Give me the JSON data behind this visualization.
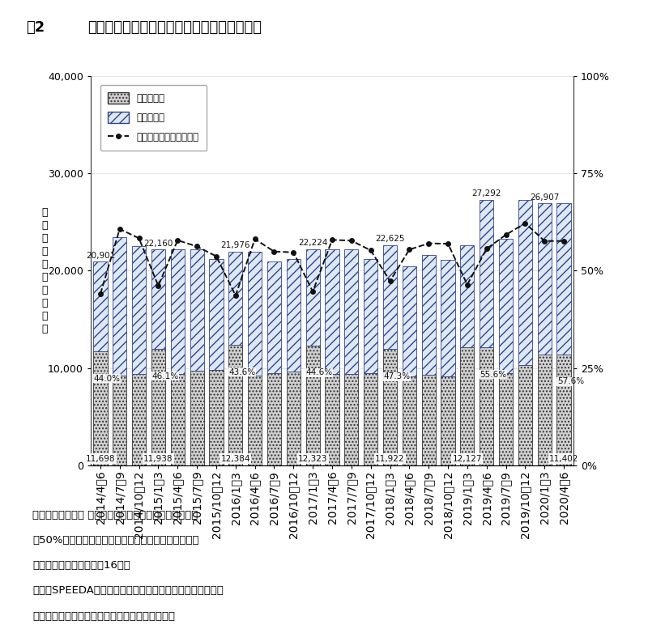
{
  "quarters": [
    "2014/4〧6",
    "2014/7〧9",
    "2014/10〒12",
    "2015/1〧3",
    "2015/4〧6",
    "2015/7〧9",
    "2015/10〒12",
    "2016/1〧3",
    "2016/4〧6",
    "2016/7〧9",
    "2016/10〒12",
    "2017/1〧3",
    "2017/4〧6",
    "2017/7〧9",
    "2017/10〒12",
    "2018/1〧3",
    "2018/4〧6",
    "2018/7〧9",
    "2018/10〒12",
    "2019/1〧3",
    "2019/4〧6",
    "2019/7〧9",
    "2019/10〒12",
    "2020/1〧3",
    "2020/4〧6"
  ],
  "domestic": [
    11698,
    9193,
    9400,
    11938,
    9350,
    9700,
    9800,
    12384,
    9200,
    9450,
    9600,
    12323,
    9350,
    9400,
    9500,
    11922,
    9100,
    9300,
    9100,
    12127,
    12127,
    9500,
    10300,
    11402,
    11402
  ],
  "overseas": [
    9203,
    14207,
    13161,
    10222,
    12810,
    12460,
    11376,
    9592,
    12776,
    11526,
    11576,
    9901,
    12874,
    12824,
    11724,
    10703,
    11322,
    12325,
    12025,
    10498,
    15165,
    13792,
    16989,
    15505,
    15505
  ],
  "ratio": [
    0.44,
    0.607,
    0.583,
    0.461,
    0.578,
    0.562,
    0.537,
    0.436,
    0.581,
    0.549,
    0.547,
    0.446,
    0.579,
    0.577,
    0.552,
    0.473,
    0.554,
    0.57,
    0.569,
    0.464,
    0.556,
    0.592,
    0.622,
    0.576,
    0.576
  ],
  "total_labels": {
    "0": "20,901",
    "3": "22,160",
    "7": "21,976",
    "11": "22,224",
    "15": "22,625",
    "20": "27,292",
    "23": "26,907"
  },
  "domestic_labels": {
    "0": "11,698",
    "3": "11,938",
    "7": "12,384",
    "11": "12,323",
    "15": "11,922",
    "19": "12,127",
    "24": "11,402"
  },
  "ratio_labels": {
    "0": "44.0%",
    "3": "46.1%",
    "7": "43.6%",
    "11": "44.6%",
    "15": "47.3%",
    "20": "55.6%",
    "24": "57.6%"
  },
  "title_fig": "図2",
  "title_main": "国内製薬企楮の四半期国内外売上高トレンド",
  "legend_dom": "国内売上高",
  "legend_ov": "海外売上高",
  "legend_ratio": "海外売上高比率（右軸）",
  "ylabel": "四\n半\n期\n売\n上\n高\n（\n億\n円\n）",
  "note_line1": "対象：製薬協加盟 東証一部上場企楮（医薬品売上高比率",
  "note_line2": "　50%超）のうち、対象期間を通じて海外売上高デー",
  "note_line3": "　タが入手可能な企楮（16社）",
  "note_line4": "出所：SPEEDA（株）ユーザベース）、各社決算短信、同補",
  "note_line5": "　足資料に基づき、医薬産業政策研究所にて作成"
}
